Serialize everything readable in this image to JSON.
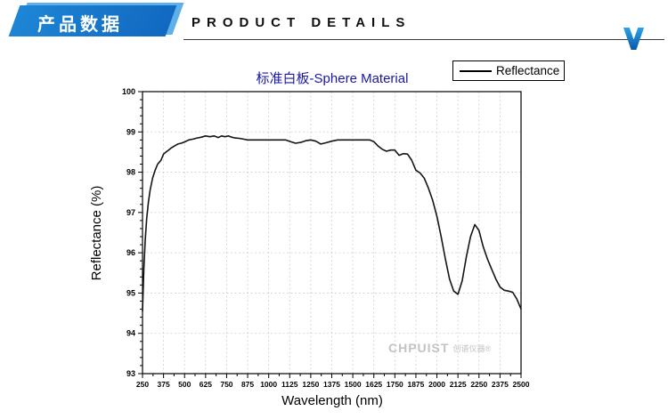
{
  "header": {
    "badge": "产品数据",
    "title": "PRODUCT DETAILS"
  },
  "chart": {
    "watermark": "CHPUIST",
    "watermark_cn": "创谱仪器®"
  },
  "colors": {
    "badge_blue": "#1573cc",
    "badge_light": "#5fb0e8",
    "title_navy": "#1a17a8",
    "line": "#141414",
    "grid": "#cfcfcf",
    "axis": "#000000",
    "watermark_gray": "#c3c3c3"
  },
  "chart_data": {
    "type": "line",
    "title": "标准白板-Sphere Material",
    "xlabel": "Wavelength (nm)",
    "ylabel": "Reflectance (%)",
    "legend_position": "top-right",
    "grid": true,
    "xlim": [
      250,
      2500
    ],
    "ylim": [
      93,
      100
    ],
    "xticks": [
      250,
      375,
      500,
      625,
      750,
      875,
      1000,
      1125,
      1250,
      1375,
      1500,
      1625,
      1750,
      1875,
      2000,
      2125,
      2250,
      2375,
      2500
    ],
    "yticks": [
      93,
      94,
      95,
      96,
      97,
      98,
      99,
      100
    ],
    "x_minor_step": 62.5,
    "y_minor_step": 0.2,
    "series": [
      {
        "name": "Reflectance",
        "x": [
          250,
          258,
          266,
          275,
          285,
          295,
          310,
          325,
          340,
          350,
          360,
          375,
          390,
          405,
          420,
          440,
          460,
          480,
          500,
          525,
          550,
          575,
          600,
          625,
          650,
          675,
          700,
          720,
          740,
          760,
          780,
          800,
          825,
          850,
          875,
          900,
          950,
          1000,
          1050,
          1100,
          1130,
          1160,
          1190,
          1220,
          1250,
          1280,
          1310,
          1340,
          1375,
          1410,
          1450,
          1500,
          1550,
          1600,
          1625,
          1650,
          1675,
          1700,
          1725,
          1750,
          1775,
          1800,
          1825,
          1850,
          1875,
          1900,
          1925,
          1950,
          1975,
          2000,
          2025,
          2050,
          2075,
          2100,
          2125,
          2150,
          2175,
          2200,
          2225,
          2250,
          2275,
          2300,
          2325,
          2350,
          2375,
          2400,
          2425,
          2450,
          2475,
          2500
        ],
        "y": [
          94.55,
          95.6,
          96.3,
          96.85,
          97.25,
          97.55,
          97.85,
          98.05,
          98.2,
          98.25,
          98.3,
          98.45,
          98.5,
          98.55,
          98.6,
          98.65,
          98.7,
          98.72,
          98.75,
          98.8,
          98.82,
          98.85,
          98.87,
          98.9,
          98.88,
          98.9,
          98.86,
          98.9,
          98.88,
          98.9,
          98.87,
          98.85,
          98.84,
          98.82,
          98.8,
          98.8,
          98.8,
          98.8,
          98.8,
          98.8,
          98.76,
          98.72,
          98.74,
          98.78,
          98.8,
          98.77,
          98.7,
          98.73,
          98.77,
          98.8,
          98.8,
          98.8,
          98.8,
          98.8,
          98.76,
          98.65,
          98.57,
          98.52,
          98.55,
          98.55,
          98.42,
          98.46,
          98.45,
          98.3,
          98.05,
          97.98,
          97.85,
          97.6,
          97.3,
          96.9,
          96.4,
          95.85,
          95.35,
          95.05,
          94.97,
          95.3,
          95.9,
          96.4,
          96.7,
          96.55,
          96.15,
          95.85,
          95.6,
          95.35,
          95.15,
          95.07,
          95.05,
          95.02,
          94.85,
          94.6
        ]
      }
    ]
  }
}
